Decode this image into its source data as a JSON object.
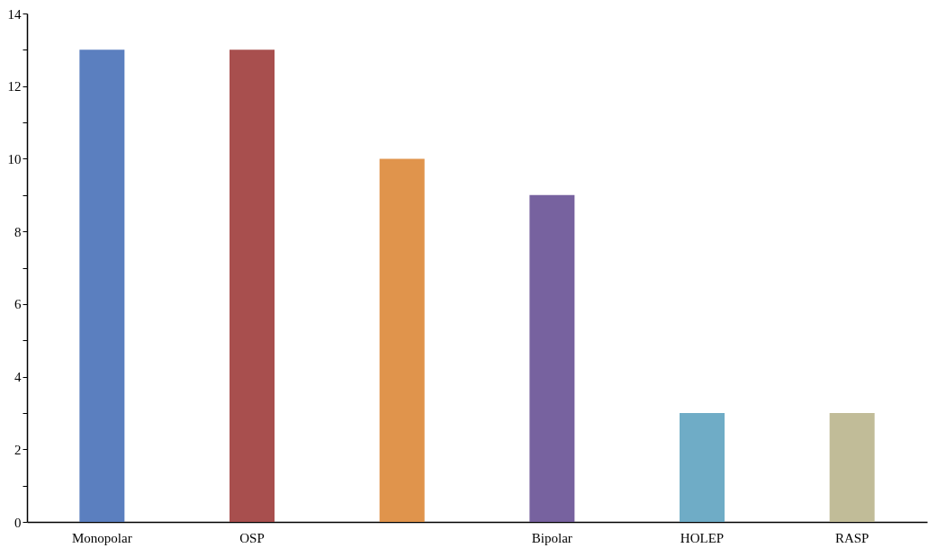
{
  "chart_data": {
    "type": "bar",
    "categories": [
      "Monopolar",
      "OSP",
      null,
      "Bipolar",
      "HOLEP",
      "RASP"
    ],
    "values": [
      13,
      13,
      10,
      9,
      3,
      3
    ],
    "colors": [
      "#5b7fbf",
      "#a84f4e",
      "#e0944c",
      "#77629f",
      "#6facc6",
      "#c1bc98"
    ],
    "ylim": [
      0,
      14
    ],
    "yticks": [
      0,
      {
        "value": 1,
        "label": null
      },
      2,
      {
        "value": 3,
        "label": null
      },
      4,
      {
        "value": 5,
        "label": null
      },
      6,
      {
        "value": 7,
        "label": null
      },
      8,
      {
        "value": 9,
        "label": null
      },
      10,
      {
        "value": 11,
        "label": null
      },
      12,
      {
        "value": 13,
        "label": null
      },
      14
    ],
    "grid": false,
    "legend": false
  }
}
